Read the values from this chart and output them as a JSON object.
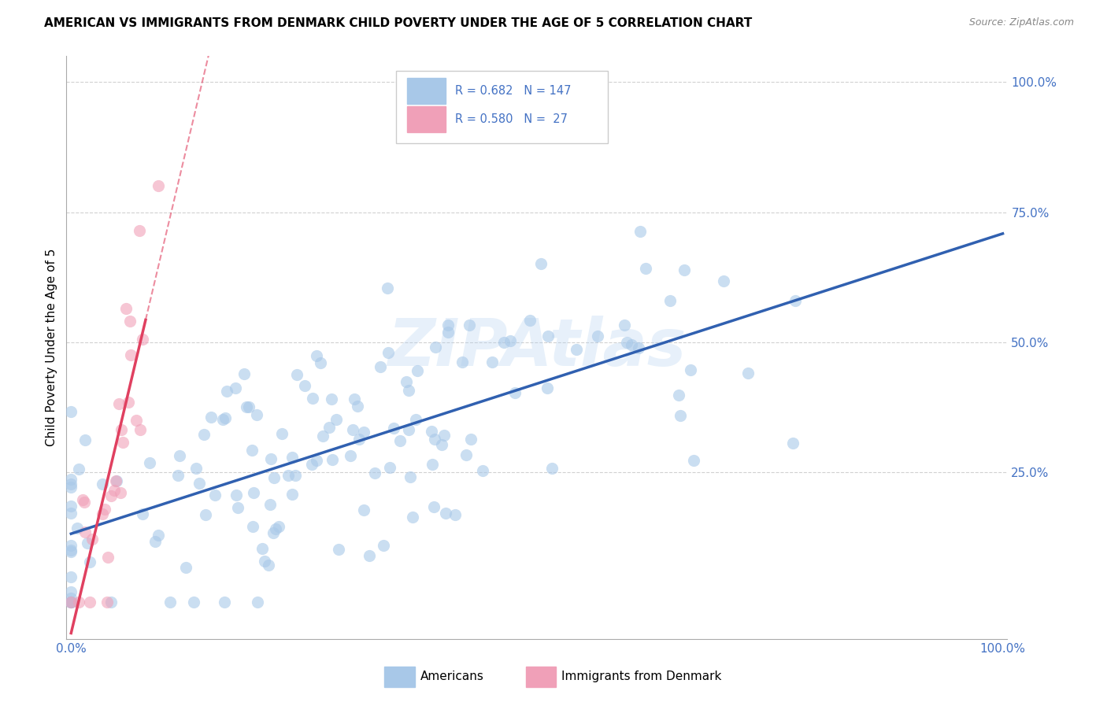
{
  "title": "AMERICAN VS IMMIGRANTS FROM DENMARK CHILD POVERTY UNDER THE AGE OF 5 CORRELATION CHART",
  "source": "Source: ZipAtlas.com",
  "ylabel": "Child Poverty Under the Age of 5",
  "legend_americans_color": "#a8c8e8",
  "legend_denmark_color": "#f0a0b8",
  "line_americans_color": "#3060b0",
  "line_denmark_color": "#e04060",
  "R_americans": 0.682,
  "N_americans": 147,
  "R_denmark": 0.58,
  "N_denmark": 27,
  "label_americans": "Americans",
  "label_denmark": "Immigrants from Denmark",
  "watermark": "ZIPAtlas",
  "background_color": "#ffffff",
  "ytick_positions": [
    0.25,
    0.5,
    0.75,
    1.0
  ],
  "ytick_labels": [
    "25.0%",
    "50.0%",
    "75.0%",
    "100.0%"
  ],
  "tick_color": "#4472c4",
  "grid_color": "#cccccc",
  "scatter_alpha": 0.6,
  "scatter_size": 120
}
